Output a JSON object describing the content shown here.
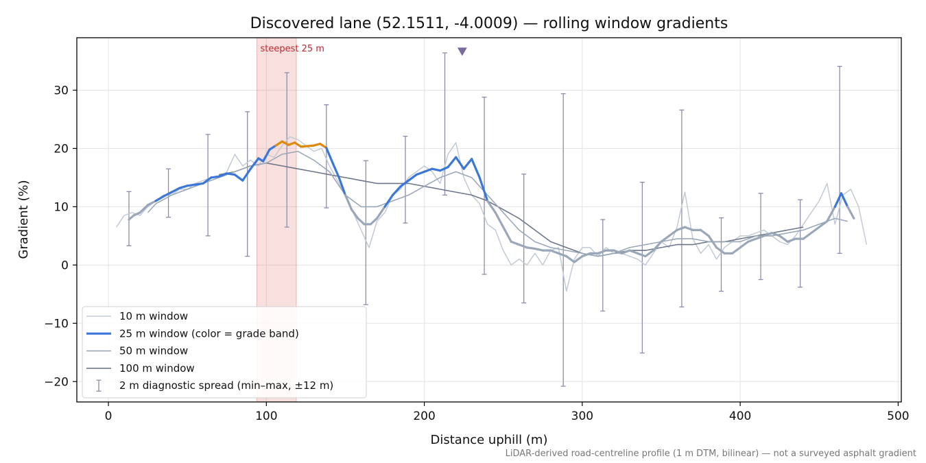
{
  "chart_data": {
    "type": "line",
    "title": "Discovered lane (52.1511, -4.0009) — rolling window gradients",
    "xlabel": "Distance uphill (m)",
    "ylabel": "Gradient (%)",
    "xlim": [
      -20,
      502
    ],
    "ylim": [
      -23.5,
      39
    ],
    "xticks": [
      0,
      100,
      200,
      300,
      400,
      500
    ],
    "yticks": [
      -20,
      -10,
      0,
      10,
      20,
      30
    ],
    "grid": true,
    "legend_position": "lower-left",
    "footnote": "LiDAR-derived road-centreline profile (1 m DTM, bilinear) — not a surveyed asphalt gradient",
    "highlight": {
      "label": "steepest 25 m",
      "x_range": [
        94,
        119
      ],
      "color": "#d9534f"
    },
    "marker": {
      "x": 224,
      "y": 36.6,
      "color": "#7b6aa0"
    },
    "colors": {
      "w10": "#c2cad4",
      "w25": "#3a77d8",
      "w25_steep": "#e08a0b",
      "w50": "#9aa7b8",
      "w100": "#6c7688",
      "spread": "#8c8cac"
    },
    "legend": [
      {
        "label": "10 m window",
        "key": "w10"
      },
      {
        "label": "25 m window (color = grade band)",
        "key": "w25"
      },
      {
        "label": "50 m window",
        "key": "w50"
      },
      {
        "label": "100 m window",
        "key": "w100"
      },
      {
        "label": "2 m diagnostic spread (min–max, ±12 m)",
        "key": "spread"
      }
    ],
    "series": [
      {
        "name": "10 m window",
        "key": "w10",
        "x": [
          5,
          10,
          15,
          20,
          25,
          30,
          35,
          40,
          45,
          50,
          55,
          60,
          65,
          70,
          75,
          80,
          85,
          90,
          95,
          100,
          105,
          110,
          115,
          120,
          125,
          130,
          135,
          140,
          145,
          150,
          155,
          160,
          165,
          170,
          175,
          180,
          185,
          190,
          195,
          200,
          205,
          210,
          215,
          220,
          225,
          230,
          235,
          240,
          245,
          250,
          255,
          260,
          265,
          270,
          275,
          280,
          285,
          290,
          295,
          300,
          305,
          310,
          315,
          320,
          325,
          330,
          335,
          340,
          345,
          350,
          355,
          360,
          365,
          370,
          375,
          380,
          385,
          390,
          395,
          400,
          405,
          410,
          415,
          420,
          425,
          430,
          435,
          440,
          445,
          450,
          455,
          460,
          465,
          470,
          475,
          480
        ],
        "y": [
          6.5,
          8.5,
          9,
          8.5,
          10,
          11,
          12,
          12,
          13,
          13,
          14,
          14.5,
          15,
          15,
          16,
          19,
          17,
          18,
          17,
          19,
          18.5,
          20.5,
          22,
          21.5,
          20.5,
          19.5,
          20,
          17,
          14.5,
          12,
          9,
          6,
          3,
          7.5,
          9,
          12,
          13,
          15,
          16,
          17,
          16,
          14,
          19,
          21,
          15,
          12,
          10.5,
          7,
          6,
          2.5,
          0,
          1,
          0,
          2,
          0,
          2.5,
          3,
          -4.5,
          1,
          3,
          3,
          1.5,
          3,
          2,
          2,
          1.5,
          1,
          0,
          2,
          4,
          3,
          6.5,
          12.5,
          4.5,
          2,
          3.5,
          1,
          3,
          4,
          5,
          5,
          5.5,
          6,
          5,
          4,
          3.5,
          5,
          7,
          9,
          11,
          14,
          7,
          12,
          13,
          10,
          3.5
        ]
      },
      {
        "name": "25 m window",
        "key": "w25",
        "x": [
          13,
          16,
          20,
          25,
          30,
          35,
          40,
          45,
          50,
          55,
          60,
          65,
          70,
          75,
          80,
          85,
          90,
          95,
          98,
          102,
          106,
          110,
          114,
          118,
          122,
          126,
          130,
          134,
          138,
          142,
          146,
          150,
          154,
          158,
          162,
          166,
          170,
          175,
          180,
          185,
          190,
          195,
          200,
          205,
          210,
          215,
          220,
          225,
          230,
          235,
          240,
          245,
          250,
          255,
          260,
          265,
          270,
          275,
          280,
          285,
          290,
          295,
          300,
          305,
          310,
          315,
          320,
          325,
          330,
          335,
          340,
          345,
          350,
          355,
          360,
          365,
          370,
          375,
          380,
          385,
          390,
          395,
          400,
          405,
          410,
          415,
          420,
          425,
          430,
          435,
          440,
          445,
          450,
          455,
          460,
          464,
          468,
          472
        ],
        "y": [
          7.8,
          8.5,
          9,
          10.3,
          11,
          11.8,
          12.5,
          13.2,
          13.6,
          13.8,
          14,
          15,
          15.2,
          15.7,
          15.5,
          14.5,
          16.5,
          18.3,
          17.8,
          19.8,
          20.5,
          21.2,
          20.6,
          21,
          20.3,
          20.4,
          20.5,
          20.8,
          20.1,
          17.5,
          15,
          12,
          9.5,
          8,
          7,
          7,
          8,
          10,
          12,
          13.5,
          14.5,
          15.5,
          16,
          16.5,
          16.2,
          16.8,
          18.5,
          16.5,
          18.2,
          15,
          11,
          9,
          6.5,
          4,
          3.5,
          3,
          2.8,
          2.5,
          2.5,
          2,
          1.5,
          0.5,
          1.5,
          2,
          2,
          2.5,
          2.5,
          2,
          2.5,
          2,
          1.5,
          2.5,
          4,
          5,
          6,
          6.5,
          6,
          6,
          5,
          3,
          2,
          2,
          3,
          4,
          4.5,
          5,
          5.5,
          5,
          4,
          4.5,
          4.5,
          5.5,
          6.5,
          7.5,
          10,
          12.3,
          10,
          8
        ]
      },
      {
        "name": "50 m window",
        "key": "w50",
        "x": [
          25,
          30,
          40,
          50,
          60,
          70,
          80,
          90,
          100,
          110,
          120,
          130,
          140,
          150,
          160,
          170,
          180,
          190,
          200,
          210,
          220,
          230,
          240,
          250,
          260,
          270,
          280,
          290,
          300,
          310,
          320,
          330,
          340,
          350,
          360,
          370,
          380,
          390,
          400,
          410,
          420,
          430,
          440,
          450,
          460,
          468
        ],
        "y": [
          9,
          10.5,
          12,
          13,
          14,
          15,
          16,
          17,
          17.5,
          19,
          19.5,
          18,
          16,
          12,
          10,
          10,
          11,
          12,
          13.5,
          15,
          16,
          15,
          12,
          9,
          6,
          4,
          3,
          2.5,
          2,
          1.5,
          2,
          3,
          3.5,
          4,
          4.5,
          4.5,
          4,
          4,
          4,
          5,
          5,
          5.5,
          6,
          7,
          8,
          7.5
        ]
      },
      {
        "name": "100 m window",
        "key": "w100",
        "x": [
          70,
          80,
          90,
          100,
          110,
          120,
          130,
          140,
          150,
          160,
          170,
          180,
          190,
          200,
          210,
          220,
          230,
          240,
          250,
          260,
          270,
          280,
          290,
          300,
          310,
          320,
          330,
          340,
          350,
          360,
          370,
          380,
          390,
          400,
          410,
          420,
          430,
          440
        ],
        "y": [
          15.5,
          16,
          17,
          17.5,
          17,
          16.5,
          16,
          15.5,
          15,
          14.5,
          14,
          14,
          14,
          13.5,
          13,
          12.5,
          12,
          11,
          9.5,
          8,
          6,
          4,
          3,
          2,
          1.5,
          2,
          2.5,
          2.5,
          3,
          3.5,
          3.5,
          4,
          4,
          4.5,
          5,
          5.5,
          6,
          6.5
        ]
      }
    ],
    "steep_range": [
      106,
      138
    ],
    "spread": {
      "name": "2 m diagnostic spread (min–max, ±12 m)",
      "x": [
        13,
        38,
        63,
        88,
        113,
        138,
        163,
        188,
        213,
        238,
        263,
        288,
        313,
        338,
        363,
        388,
        413,
        438,
        463
      ],
      "min": [
        3.3,
        8.2,
        5,
        1.5,
        6.5,
        9.8,
        -6.8,
        7.2,
        12,
        -1.6,
        -6.5,
        -20.8,
        -7.9,
        -15.1,
        -7.2,
        -4.5,
        -2.5,
        -3.8,
        2
      ],
      "max": [
        12.6,
        16.5,
        22.4,
        26.3,
        33,
        27.5,
        17.9,
        22.1,
        36.4,
        28.8,
        15.6,
        29.4,
        7.8,
        14.2,
        26.6,
        8.1,
        12.3,
        11.2,
        34.1
      ]
    }
  }
}
